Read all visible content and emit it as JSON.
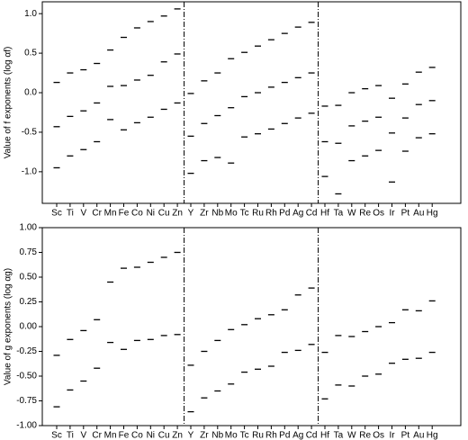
{
  "chart_data": [
    {
      "type": "scatter",
      "ylabel": "Value of f exponents (log αf)",
      "categories": [
        "Sc",
        "Ti",
        "V",
        "Cr",
        "Mn",
        "Fe",
        "Co",
        "Ni",
        "Cu",
        "Zn",
        "Y",
        "Zr",
        "Nb",
        "Mo",
        "Tc",
        "Ru",
        "Rh",
        "Pd",
        "Ag",
        "Cd",
        "Hf",
        "Ta",
        "W",
        "Re",
        "Os",
        "Ir",
        "Pt",
        "Au",
        "Hg"
      ],
      "series": [
        {
          "color": "#000000",
          "values": [
            0.13,
            0.25,
            0.29,
            0.37,
            0.54,
            0.7,
            0.82,
            0.9,
            0.97,
            1.06,
            -0.01,
            0.15,
            0.25,
            0.43,
            0.51,
            0.59,
            0.67,
            0.75,
            0.83,
            0.89,
            -0.17,
            -0.16,
            0.0,
            0.05,
            0.09,
            -0.07,
            0.11,
            0.26,
            0.32
          ]
        },
        {
          "color": "#000000",
          "values": [
            -0.43,
            -0.3,
            -0.23,
            -0.13,
            0.08,
            0.09,
            0.16,
            0.22,
            0.39,
            0.49,
            -0.55,
            -0.39,
            -0.29,
            -0.19,
            -0.05,
            0.0,
            0.07,
            0.13,
            0.19,
            0.25,
            -0.62,
            -0.64,
            -0.42,
            -0.36,
            -0.31,
            -0.51,
            -0.32,
            -0.15,
            -0.1
          ]
        },
        {
          "color": "#000000",
          "values": [
            -0.95,
            -0.8,
            -0.72,
            -0.62,
            -0.34,
            -0.47,
            -0.38,
            -0.31,
            -0.21,
            -0.13,
            -1.02,
            -0.86,
            -0.82,
            -0.89,
            -0.56,
            -0.52,
            -0.46,
            -0.39,
            -0.32,
            -0.26,
            -1.06,
            -1.28,
            -0.86,
            -0.8,
            -0.73,
            -1.13,
            -0.74,
            -0.57,
            -0.52
          ]
        }
      ],
      "ylim": [
        -1.4,
        1.15
      ],
      "yticks": [
        {
          "value": -1,
          "label": "-1.0"
        },
        -0.5,
        {
          "value": 0,
          "label": "0.0"
        },
        0.5,
        {
          "value": 1,
          "label": "1.0"
        }
      ]
    },
    {
      "type": "scatter",
      "ylabel": "Value of g exponents (log αg)",
      "categories": [
        "Sc",
        "Ti",
        "V",
        "Cr",
        "Mn",
        "Fe",
        "Co",
        "Ni",
        "Cu",
        "Zn",
        "Y",
        "Zr",
        "Nb",
        "Mo",
        "Tc",
        "Ru",
        "Rh",
        "Pd",
        "Ag",
        "Cd",
        "Hf",
        "Ta",
        "W",
        "Re",
        "Os",
        "Ir",
        "Pt",
        "Au",
        "Hg"
      ],
      "series": [
        {
          "color": "#000000",
          "values": [
            -0.29,
            -0.13,
            -0.04,
            0.07,
            0.45,
            0.59,
            0.6,
            0.65,
            0.7,
            0.75,
            -0.39,
            -0.25,
            -0.14,
            -0.03,
            0.02,
            0.08,
            0.12,
            0.17,
            0.32,
            0.39,
            -0.26,
            -0.09,
            -0.1,
            -0.05,
            0.0,
            0.04,
            0.17,
            0.16,
            0.26
          ]
        },
        {
          "color": "#000000",
          "values": [
            -0.81,
            -0.64,
            -0.55,
            -0.42,
            -0.16,
            -0.23,
            -0.14,
            -0.13,
            -0.09,
            -0.08,
            -0.86,
            -0.72,
            -0.65,
            -0.58,
            -0.46,
            -0.43,
            -0.4,
            -0.26,
            -0.24,
            -0.18,
            -0.73,
            -0.59,
            -0.6,
            -0.5,
            -0.48,
            -0.37,
            -0.33,
            -0.32,
            -0.26
          ]
        }
      ],
      "ylim": [
        -1,
        1
      ],
      "yticks": [
        {
          "value": -1,
          "label": "-1.00"
        },
        {
          "value": -0.75,
          "label": "-0.75"
        },
        {
          "value": -0.5,
          "label": "-0.50"
        },
        {
          "value": -0.25,
          "label": "-0.25"
        },
        {
          "value": 0,
          "label": "0.00"
        },
        {
          "value": 0.25,
          "label": "0.25"
        },
        {
          "value": 0.5,
          "label": "0.50"
        },
        {
          "value": 0.75,
          "label": "0.75"
        },
        {
          "value": 1,
          "label": "1.00"
        }
      ]
    }
  ]
}
